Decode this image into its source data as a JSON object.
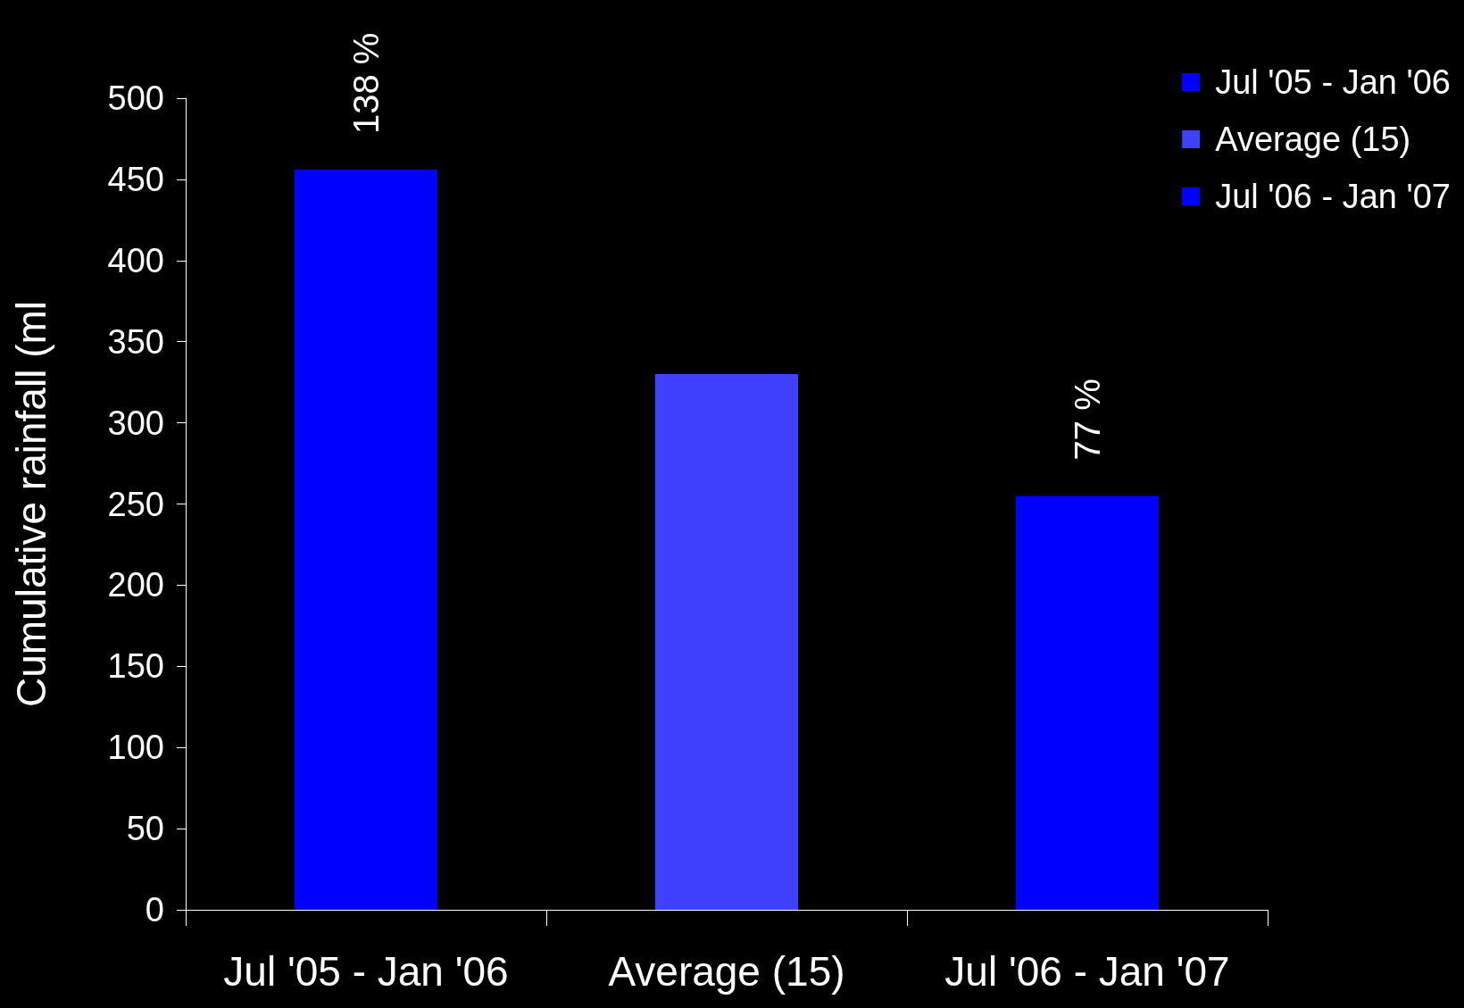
{
  "chart_data": {
    "type": "bar",
    "ylabel": "Cumulative rainfall (ml",
    "categories": [
      "Jul '05 - Jan '06",
      "Average (15)",
      "Jul '06 - Jan '07"
    ],
    "series": [
      {
        "name": "Jul '05 - Jan '06",
        "color": "#0000ff",
        "values": [
          456,
          null,
          null
        ]
      },
      {
        "name": "Average (15)",
        "color": "#4040ff",
        "values": [
          null,
          330,
          null
        ]
      },
      {
        "name": "Jul '06 - Jan '07",
        "color": "#0000ff",
        "values": [
          null,
          null,
          255
        ]
      }
    ],
    "annotations": [
      {
        "text": "138 %",
        "x": "Jul '05 - Jan '06",
        "y": 456
      },
      {
        "text": "77 %",
        "x": "Jul '06 - Jan '07",
        "y": 255
      }
    ],
    "ylim": [
      0,
      500
    ],
    "yticks": [
      0,
      50,
      100,
      150,
      200,
      250,
      300,
      350,
      400,
      450,
      500
    ],
    "grid": false,
    "legend": "top right"
  }
}
